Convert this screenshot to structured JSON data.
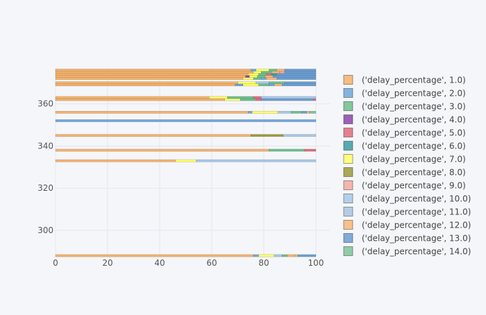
{
  "chart_data": {
    "type": "bar",
    "orientation": "horizontal",
    "barmode": "stack",
    "xlim": [
      0,
      100
    ],
    "ylim": [
      287.5,
      377
    ],
    "x_ticks": [
      0,
      20,
      40,
      60,
      80,
      100
    ],
    "y_ticks": [
      300,
      320,
      340,
      360
    ],
    "grid": true,
    "legend_position": "right",
    "legend": [
      {
        "label": "('delay_percentage', 1.0)",
        "color": "#f6b26b"
      },
      {
        "label": "('delay_percentage', 2.0)",
        "color": "#6fa8dc"
      },
      {
        "label": "('delay_percentage', 3.0)",
        "color": "#6cc08b"
      },
      {
        "label": "('delay_percentage', 4.0)",
        "color": "#8e44ad"
      },
      {
        "label": "('delay_percentage', 5.0)",
        "color": "#e06c7d"
      },
      {
        "label": "('delay_percentage', 6.0)",
        "color": "#3a9ea5"
      },
      {
        "label": "('delay_percentage', 7.0)",
        "color": "#ffff66"
      },
      {
        "label": "('delay_percentage', 8.0)",
        "color": "#9e9a3c"
      },
      {
        "label": "('delay_percentage', 9.0)",
        "color": "#f5a9a0"
      },
      {
        "label": "('delay_percentage', 10.0)",
        "color": "#a8c8e6"
      },
      {
        "label": "('delay_percentage', 11.0)",
        "color": "#a9c5de"
      },
      {
        "label": "('delay_percentage', 12.0)",
        "color": "#f8b777"
      },
      {
        "label": "('delay_percentage', 13.0)",
        "color": "#6a9ed3"
      },
      {
        "label": "('delay_percentage', 14.0)",
        "color": "#7cc59a"
      }
    ],
    "bars": [
      {
        "y": 288,
        "segments": [
          [
            1,
            76
          ],
          [
            2,
            2
          ],
          [
            7,
            6
          ],
          [
            10,
            3
          ],
          [
            3,
            2
          ],
          [
            1,
            3
          ],
          [
            12,
            1
          ],
          [
            13,
            7
          ]
        ]
      },
      {
        "y": 333,
        "segments": [
          [
            1,
            46
          ],
          [
            7,
            8
          ],
          [
            10,
            46
          ]
        ]
      },
      {
        "y": 338,
        "segments": [
          [
            1,
            82
          ],
          [
            3,
            13.5
          ],
          [
            5,
            4.5
          ]
        ]
      },
      {
        "y": 345,
        "segments": [
          [
            1,
            75
          ],
          [
            8,
            12.5
          ],
          [
            10,
            12.5
          ]
        ]
      },
      {
        "y": 352,
        "segments": [
          [
            2,
            100
          ]
        ]
      },
      {
        "y": 356,
        "segments": [
          [
            1,
            74
          ],
          [
            2,
            1.5
          ],
          [
            7,
            10
          ],
          [
            10,
            5
          ],
          [
            3,
            4
          ],
          [
            13,
            2
          ],
          [
            12,
            1
          ],
          [
            14,
            2.5
          ]
        ]
      },
      {
        "y": 362,
        "segments": [
          [
            1,
            65
          ],
          [
            7,
            6
          ],
          [
            3,
            6
          ],
          [
            5,
            2
          ],
          [
            13,
            20
          ],
          [
            5,
            1
          ]
        ]
      },
      {
        "y": 363,
        "segments": [
          [
            1,
            59
          ],
          [
            7,
            7
          ],
          [
            3,
            10
          ],
          [
            5,
            3
          ],
          [
            10,
            21
          ]
        ]
      },
      {
        "y": 369,
        "segments": [
          [
            1,
            69
          ],
          [
            13,
            3
          ],
          [
            7,
            6
          ],
          [
            3,
            4
          ],
          [
            2,
            2
          ],
          [
            12,
            3
          ],
          [
            13,
            13
          ]
        ]
      },
      {
        "y": 370,
        "segments": [
          [
            1,
            70
          ],
          [
            7,
            7
          ],
          [
            10,
            5
          ],
          [
            3,
            6
          ],
          [
            13,
            12
          ]
        ]
      },
      {
        "y": 372,
        "segments": [
          [
            1,
            72
          ],
          [
            7,
            4
          ],
          [
            3,
            3
          ],
          [
            2,
            2
          ],
          [
            12,
            4
          ],
          [
            13,
            15
          ]
        ]
      },
      {
        "y": 373,
        "segments": [
          [
            1,
            73
          ],
          [
            4,
            1.5
          ],
          [
            7,
            3
          ],
          [
            3,
            3
          ],
          [
            12,
            3
          ],
          [
            13,
            16.5
          ]
        ]
      },
      {
        "y": 374,
        "segments": [
          [
            1,
            74
          ],
          [
            7,
            4
          ],
          [
            3,
            3
          ],
          [
            5,
            2
          ],
          [
            6,
            2
          ],
          [
            13,
            15
          ]
        ]
      },
      {
        "y": 375,
        "segments": [
          [
            1,
            76
          ],
          [
            7,
            3
          ],
          [
            3,
            4
          ],
          [
            12,
            3
          ],
          [
            9,
            2
          ],
          [
            13,
            12
          ]
        ]
      },
      {
        "y": 376,
        "segments": [
          [
            1,
            75
          ],
          [
            2,
            2
          ],
          [
            7,
            5
          ],
          [
            3,
            3
          ],
          [
            12,
            3
          ],
          [
            13,
            12
          ]
        ]
      }
    ]
  }
}
